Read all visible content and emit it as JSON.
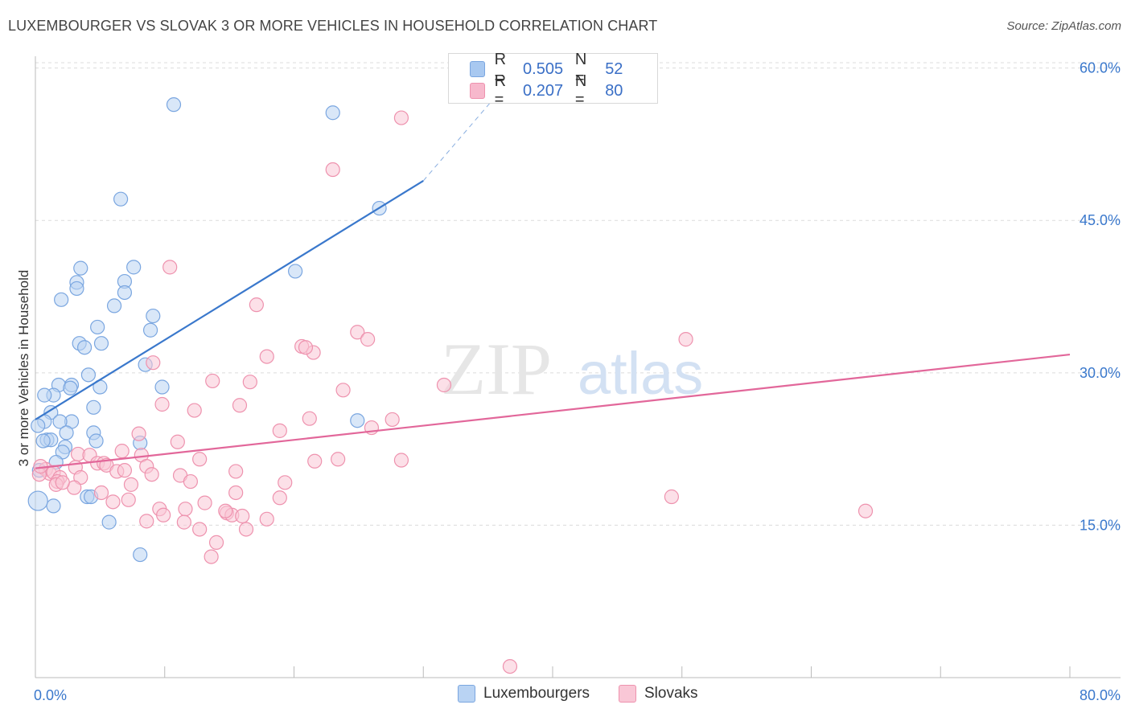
{
  "header": {
    "title": "LUXEMBOURGER VS SLOVAK 3 OR MORE VEHICLES IN HOUSEHOLD CORRELATION CHART",
    "source": "Source: ZipAtlas.com"
  },
  "watermark": {
    "zip": "ZIP",
    "atlas": "atlas"
  },
  "legend": {
    "rows": [
      {
        "r_label": "R =",
        "r_value": "0.505",
        "n_label": "N =",
        "n_value": "52",
        "fill": "#a8c8f0",
        "stroke": "#7aa6e0"
      },
      {
        "r_label": "R =",
        "r_value": "0.207",
        "n_label": "N =",
        "n_value": "80",
        "fill": "#f7b8cc",
        "stroke": "#ee92ae"
      }
    ]
  },
  "bottom_legend": {
    "items": [
      {
        "label": "Luxembourgers",
        "fill": "#b9d3f3",
        "stroke": "#7aa6e0"
      },
      {
        "label": "Slovaks",
        "fill": "#f9c7d6",
        "stroke": "#ee92ae"
      }
    ]
  },
  "chart_data": {
    "type": "scatter",
    "title": "LUXEMBOURGER VS SLOVAK 3 OR MORE VEHICLES IN HOUSEHOLD CORRELATION CHART",
    "xlabel": "",
    "ylabel": "3 or more Vehicles in Household",
    "xlim": [
      0,
      80
    ],
    "ylim": [
      0,
      61
    ],
    "x_tick_labels": [
      {
        "value": 0,
        "label": "0.0%"
      },
      {
        "value": 80,
        "label": "80.0%"
      }
    ],
    "y_tick_labels": [
      {
        "value": 15,
        "label": "15.0%"
      },
      {
        "value": 30,
        "label": "30.0%"
      },
      {
        "value": 45,
        "label": "45.0%"
      },
      {
        "value": 60,
        "label": "60.0%"
      }
    ],
    "grid": true,
    "series": [
      {
        "name": "Luxembourgers",
        "color": "#7aa6e0",
        "fill": "#b9d3f3",
        "trend": {
          "color": "#3a78cc",
          "x_start": 0,
          "y_start": 25.4,
          "x_end": 30,
          "y_end": 48.9,
          "dash_to_x": 37,
          "dash_to_y": 59.3
        },
        "points": [
          [
            10.7,
            56.4
          ],
          [
            23.0,
            55.6
          ],
          [
            6.6,
            47.1
          ],
          [
            26.6,
            46.2
          ],
          [
            7.6,
            40.4
          ],
          [
            3.5,
            40.3
          ],
          [
            20.1,
            40.0
          ],
          [
            3.2,
            38.9
          ],
          [
            6.9,
            39.0
          ],
          [
            3.2,
            38.3
          ],
          [
            6.9,
            37.9
          ],
          [
            2.0,
            37.2
          ],
          [
            6.1,
            36.6
          ],
          [
            9.1,
            35.6
          ],
          [
            4.8,
            34.5
          ],
          [
            8.9,
            34.2
          ],
          [
            3.4,
            32.9
          ],
          [
            5.1,
            32.9
          ],
          [
            3.8,
            32.5
          ],
          [
            8.5,
            30.8
          ],
          [
            4.1,
            29.8
          ],
          [
            1.8,
            28.8
          ],
          [
            2.8,
            28.8
          ],
          [
            2.7,
            28.5
          ],
          [
            5.0,
            28.6
          ],
          [
            9.8,
            28.6
          ],
          [
            1.4,
            27.8
          ],
          [
            0.7,
            27.8
          ],
          [
            4.5,
            26.6
          ],
          [
            1.2,
            26.1
          ],
          [
            24.9,
            25.3
          ],
          [
            0.7,
            25.2
          ],
          [
            2.8,
            25.2
          ],
          [
            1.9,
            25.2
          ],
          [
            2.4,
            24.1
          ],
          [
            4.5,
            24.1
          ],
          [
            0.9,
            23.4
          ],
          [
            1.2,
            23.4
          ],
          [
            4.7,
            23.3
          ],
          [
            8.1,
            23.1
          ],
          [
            0.6,
            23.3
          ],
          [
            2.3,
            22.7
          ],
          [
            2.1,
            22.2
          ],
          [
            0.2,
            24.8
          ],
          [
            1.6,
            21.2
          ],
          [
            0.3,
            20.4
          ],
          [
            1.4,
            16.9
          ],
          [
            4.0,
            17.8
          ],
          [
            4.3,
            17.8
          ],
          [
            5.7,
            15.3
          ],
          [
            8.1,
            12.1
          ],
          [
            0.2,
            17.4
          ]
        ]
      },
      {
        "name": "Slovaks",
        "color": "#ee92ae",
        "fill": "#f9c7d6",
        "trend": {
          "color": "#e2679a",
          "x_start": 0,
          "y_start": 20.6,
          "x_end": 80,
          "y_end": 31.8
        },
        "points": [
          [
            28.3,
            55.1
          ],
          [
            23.0,
            50.0
          ],
          [
            10.4,
            40.4
          ],
          [
            17.1,
            36.7
          ],
          [
            24.9,
            34.0
          ],
          [
            25.7,
            33.3
          ],
          [
            50.3,
            33.3
          ],
          [
            20.6,
            32.6
          ],
          [
            21.5,
            32.0
          ],
          [
            20.9,
            32.5
          ],
          [
            17.9,
            31.6
          ],
          [
            9.1,
            31.0
          ],
          [
            13.7,
            29.2
          ],
          [
            16.6,
            29.1
          ],
          [
            31.6,
            28.8
          ],
          [
            23.8,
            28.3
          ],
          [
            9.8,
            26.9
          ],
          [
            15.8,
            26.8
          ],
          [
            12.3,
            26.3
          ],
          [
            21.2,
            25.5
          ],
          [
            27.6,
            25.4
          ],
          [
            26.0,
            24.6
          ],
          [
            18.9,
            24.3
          ],
          [
            8.0,
            24.0
          ],
          [
            11.0,
            23.2
          ],
          [
            6.7,
            22.3
          ],
          [
            3.3,
            22.0
          ],
          [
            4.2,
            21.9
          ],
          [
            8.2,
            21.9
          ],
          [
            12.7,
            21.5
          ],
          [
            23.4,
            21.5
          ],
          [
            28.3,
            21.4
          ],
          [
            21.6,
            21.3
          ],
          [
            4.8,
            21.1
          ],
          [
            5.3,
            21.1
          ],
          [
            3.1,
            20.7
          ],
          [
            5.5,
            20.9
          ],
          [
            8.6,
            20.8
          ],
          [
            0.8,
            20.5
          ],
          [
            1.1,
            20.1
          ],
          [
            6.3,
            20.3
          ],
          [
            6.9,
            20.4
          ],
          [
            15.5,
            20.3
          ],
          [
            1.4,
            20.2
          ],
          [
            9.0,
            20.0
          ],
          [
            11.2,
            19.9
          ],
          [
            0.3,
            20.0
          ],
          [
            1.9,
            19.7
          ],
          [
            1.7,
            19.3
          ],
          [
            3.5,
            19.7
          ],
          [
            12.0,
            19.3
          ],
          [
            19.3,
            19.2
          ],
          [
            1.6,
            19.0
          ],
          [
            7.4,
            19.0
          ],
          [
            3.0,
            18.7
          ],
          [
            15.5,
            18.2
          ],
          [
            5.1,
            18.2
          ],
          [
            18.9,
            17.7
          ],
          [
            49.2,
            17.8
          ],
          [
            6.0,
            17.3
          ],
          [
            7.2,
            17.5
          ],
          [
            13.1,
            17.2
          ],
          [
            9.6,
            16.6
          ],
          [
            11.6,
            16.6
          ],
          [
            64.2,
            16.4
          ],
          [
            14.8,
            16.2
          ],
          [
            15.2,
            16.0
          ],
          [
            9.9,
            16.0
          ],
          [
            16.0,
            15.9
          ],
          [
            17.9,
            15.6
          ],
          [
            8.6,
            15.4
          ],
          [
            11.5,
            15.3
          ],
          [
            12.7,
            14.6
          ],
          [
            16.3,
            14.6
          ],
          [
            14.0,
            13.3
          ],
          [
            13.6,
            11.9
          ],
          [
            36.7,
            1.1
          ],
          [
            0.4,
            20.8
          ],
          [
            2.1,
            19.2
          ],
          [
            14.7,
            16.4
          ]
        ]
      }
    ]
  }
}
